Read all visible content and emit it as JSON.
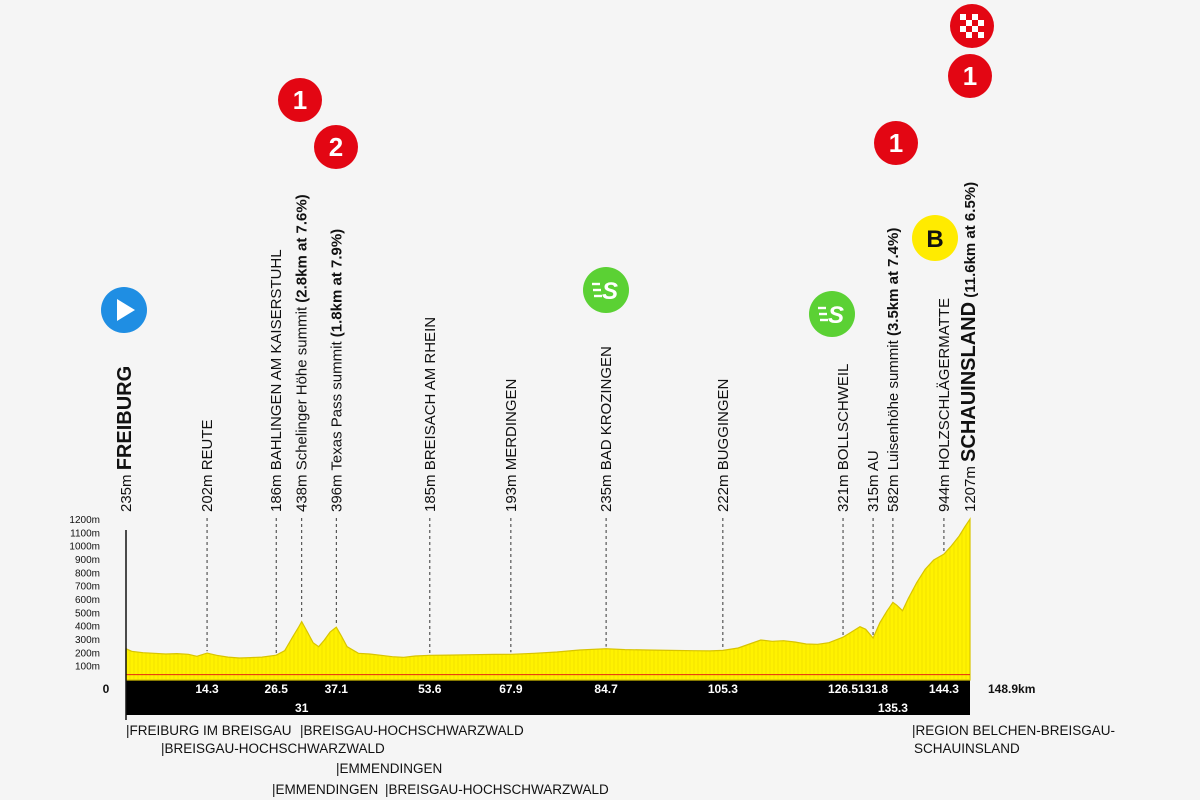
{
  "chart_data": {
    "type": "area",
    "title": "",
    "xlabel": "",
    "ylabel": "",
    "total_distance_label": "148.9km",
    "origin_label": "0",
    "xlim": [
      0,
      148.9
    ],
    "ylim": [
      0,
      1200
    ],
    "y_ticks": [
      "100m",
      "200m",
      "300m",
      "400m",
      "500m",
      "600m",
      "700m",
      "800m",
      "900m",
      "1000m",
      "1100m",
      "1200m"
    ],
    "x_ticks": [
      {
        "km": 14.3,
        "label": "14.3"
      },
      {
        "km": 26.5,
        "label": "26.5"
      },
      {
        "km": 31,
        "label": "31",
        "row": 2
      },
      {
        "km": 37.1,
        "label": "37.1"
      },
      {
        "km": 53.6,
        "label": "53.6"
      },
      {
        "km": 67.9,
        "label": "67.9"
      },
      {
        "km": 84.7,
        "label": "84.7"
      },
      {
        "km": 105.3,
        "label": "105.3"
      },
      {
        "km": 126.5,
        "label": "126.5"
      },
      {
        "km": 131.8,
        "label": "131.8"
      },
      {
        "km": 135.3,
        "label": "135.3",
        "row": 2
      },
      {
        "km": 144.3,
        "label": "144.3"
      }
    ],
    "profile": [
      [
        0,
        235
      ],
      [
        1,
        215
      ],
      [
        3,
        205
      ],
      [
        5,
        200
      ],
      [
        7,
        195
      ],
      [
        9,
        198
      ],
      [
        11,
        193
      ],
      [
        12.5,
        178
      ],
      [
        14.3,
        202
      ],
      [
        16,
        185
      ],
      [
        18,
        172
      ],
      [
        20,
        165
      ],
      [
        22,
        168
      ],
      [
        24,
        172
      ],
      [
        26.5,
        186
      ],
      [
        28,
        220
      ],
      [
        29.5,
        330
      ],
      [
        30.5,
        400
      ],
      [
        31,
        438
      ],
      [
        32,
        360
      ],
      [
        33,
        280
      ],
      [
        34,
        250
      ],
      [
        35,
        300
      ],
      [
        36,
        360
      ],
      [
        37.1,
        396
      ],
      [
        38,
        330
      ],
      [
        39,
        250
      ],
      [
        41,
        200
      ],
      [
        43,
        195
      ],
      [
        45,
        185
      ],
      [
        47,
        175
      ],
      [
        49,
        170
      ],
      [
        51,
        180
      ],
      [
        53.6,
        185
      ],
      [
        57,
        187
      ],
      [
        61,
        190
      ],
      [
        65,
        192
      ],
      [
        67.9,
        193
      ],
      [
        72,
        200
      ],
      [
        76,
        210
      ],
      [
        80,
        225
      ],
      [
        84.7,
        235
      ],
      [
        88,
        228
      ],
      [
        92,
        225
      ],
      [
        96,
        222
      ],
      [
        100,
        220
      ],
      [
        103,
        218
      ],
      [
        105.3,
        222
      ],
      [
        108,
        240
      ],
      [
        110,
        270
      ],
      [
        112,
        300
      ],
      [
        114,
        290
      ],
      [
        116,
        295
      ],
      [
        118,
        285
      ],
      [
        120,
        270
      ],
      [
        122,
        268
      ],
      [
        124,
        280
      ],
      [
        126.5,
        321
      ],
      [
        128,
        360
      ],
      [
        129.5,
        400
      ],
      [
        130.5,
        380
      ],
      [
        131.8,
        315
      ],
      [
        133,
        430
      ],
      [
        134.3,
        520
      ],
      [
        135.3,
        582
      ],
      [
        136,
        560
      ],
      [
        137,
        520
      ],
      [
        138,
        610
      ],
      [
        139.5,
        730
      ],
      [
        141,
        830
      ],
      [
        142.5,
        900
      ],
      [
        144.3,
        944
      ],
      [
        145.5,
        1000
      ],
      [
        147,
        1080
      ],
      [
        148,
        1150
      ],
      [
        148.9,
        1207
      ]
    ],
    "places": [
      {
        "km": 0,
        "elev": "235m",
        "name": "FREIBURG",
        "major": true
      },
      {
        "km": 14.3,
        "elev": "202m",
        "name": "REUTE"
      },
      {
        "km": 26.5,
        "elev": "186m",
        "name": "BAHLINGEN AM KAISERSTUHL"
      },
      {
        "km": 31,
        "elev": "438m",
        "name": "Schelinger Höhe summit",
        "climb": "(2.8km at 7.6%)"
      },
      {
        "km": 37.1,
        "elev": "396m",
        "name": "Texas Pass summit",
        "climb": "(1.8km at 7.9%)"
      },
      {
        "km": 53.6,
        "elev": "185m",
        "name": "BREISACH AM RHEIN"
      },
      {
        "km": 67.9,
        "elev": "193m",
        "name": "MERDINGEN"
      },
      {
        "km": 84.7,
        "elev": "235m",
        "name": "BAD KROZINGEN"
      },
      {
        "km": 105.3,
        "elev": "222m",
        "name": "BUGGINGEN"
      },
      {
        "km": 126.5,
        "elev": "321m",
        "name": "BOLLSCHWEIL"
      },
      {
        "km": 131.8,
        "elev": "315m",
        "name": "AU"
      },
      {
        "km": 135.3,
        "elev": "582m",
        "name": "Luisenhöhe summit",
        "climb": "(3.5km at 7.4%)"
      },
      {
        "km": 144.3,
        "elev": "944m",
        "name": "HOLZSCHLÄGERMATTE"
      },
      {
        "km": 148.9,
        "elev": "1207m",
        "name": "SCHAUINSLAND",
        "climb": "(11.6km at 6.5%)",
        "major": true
      }
    ],
    "markers": [
      {
        "km": 0,
        "type": "start",
        "icon": "start-icon"
      },
      {
        "km": 31,
        "type": "kom",
        "label": "1"
      },
      {
        "km": 37.1,
        "type": "kom",
        "label": "2"
      },
      {
        "km": 84.7,
        "type": "sprint",
        "label": "S"
      },
      {
        "km": 126.5,
        "type": "sprint",
        "label": "S"
      },
      {
        "km": 135.3,
        "type": "kom",
        "label": "1"
      },
      {
        "km": 144.3,
        "type": "bonus",
        "label": "B"
      },
      {
        "km": 148.9,
        "type": "kom",
        "label": "1"
      },
      {
        "km": 148.9,
        "type": "finish",
        "icon": "finish-flag-icon"
      }
    ],
    "regions": [
      {
        "label": "|FREIBURG IM BREISGAU"
      },
      {
        "label": "|BREISGAU-HOCHSCHWARZWALD"
      },
      {
        "label": "|BREISGAU-HOCHSCHWARZWALD"
      },
      {
        "label": "|EMMENDINGEN"
      },
      {
        "label": "|EMMENDINGEN"
      },
      {
        "label": "|BREISGAU-HOCHSCHWARZWALD"
      },
      {
        "label": "|REGION BELCHEN-BREISGAU-"
      },
      {
        "label": "SCHAUINSLAND"
      }
    ],
    "colors": {
      "fill": "#fff200",
      "fill_dark": "#d8c400",
      "band": "#000000",
      "kom": "#e30613",
      "sprint": "#5bd134",
      "start": "#1f8ee3",
      "bonus": "#ffeb00",
      "red_line": "#e30613"
    }
  }
}
